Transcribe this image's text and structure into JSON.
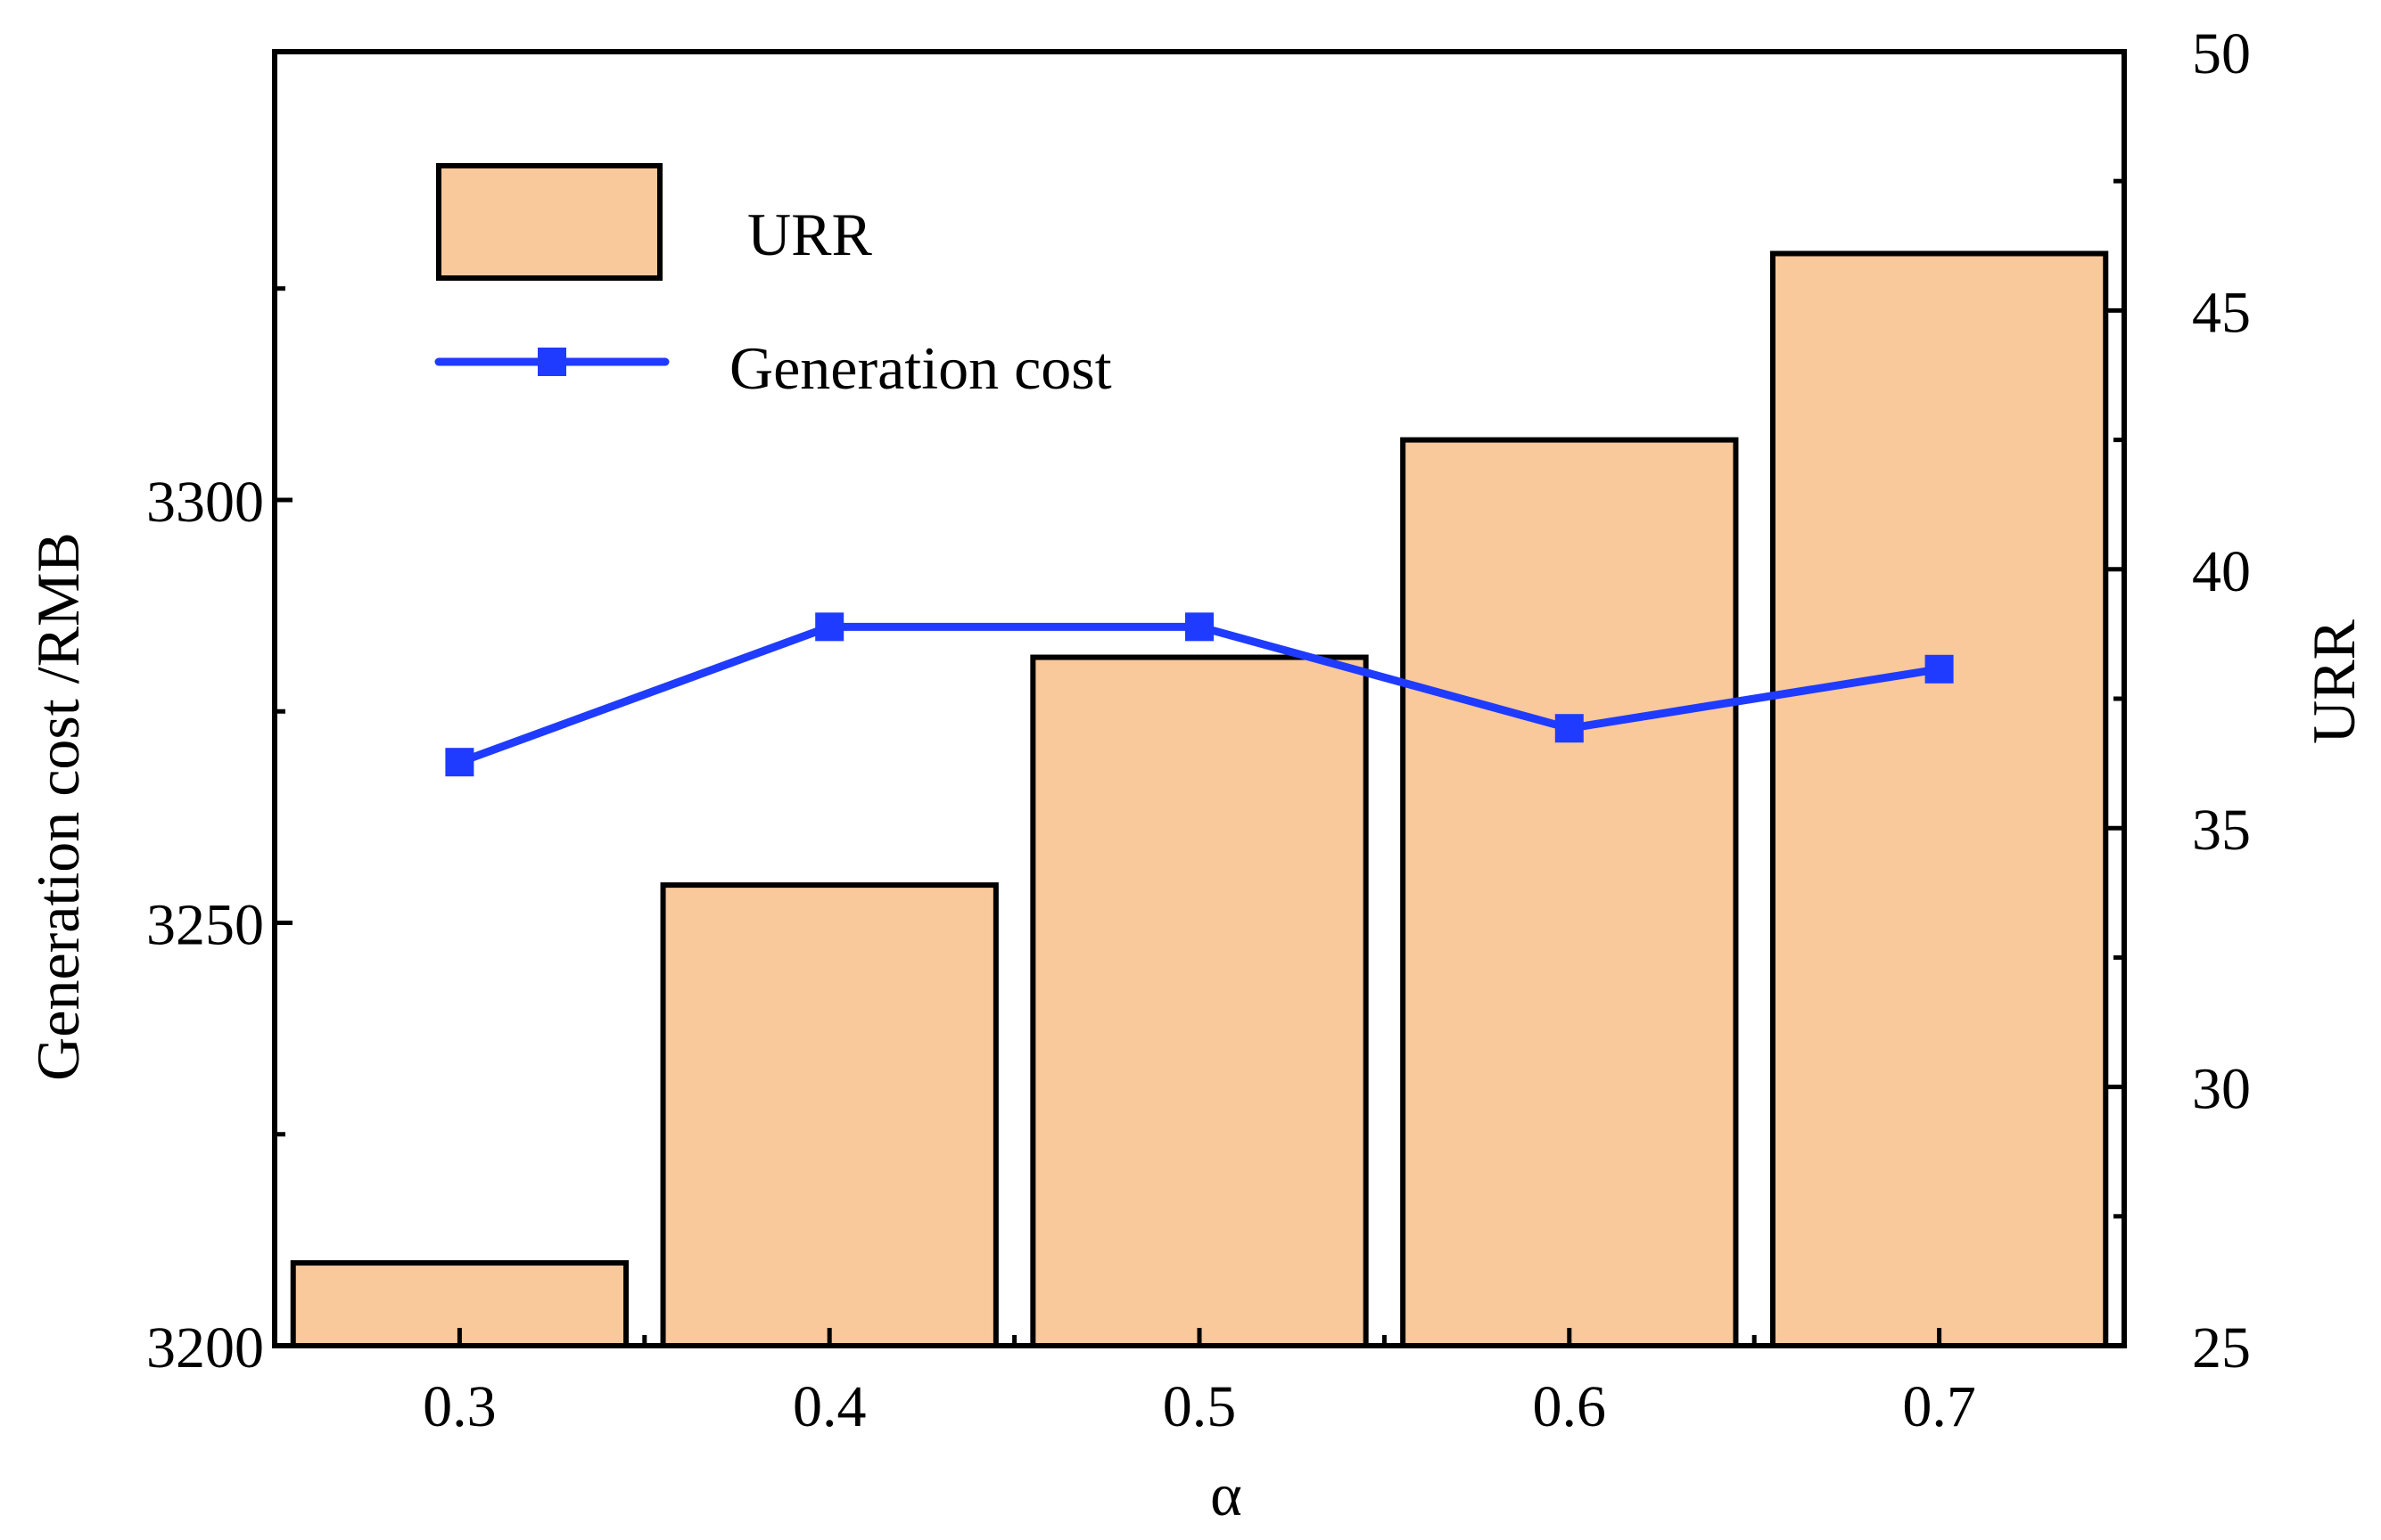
{
  "chart_data": {
    "type": "bar+line",
    "title": "",
    "xlabel": "α",
    "categories": [
      "0.3",
      "0.4",
      "0.5",
      "0.6",
      "0.7"
    ],
    "series": [
      {
        "name": "URR",
        "kind": "bar",
        "axis": "right",
        "values": [
          26.6,
          33.9,
          38.3,
          42.5,
          46.1
        ],
        "color": "#F9C89B"
      },
      {
        "name": "Generation cost",
        "kind": "line",
        "axis": "left",
        "values": [
          3269,
          3285,
          3285,
          3273,
          3280
        ],
        "color": "#1F3BFF"
      }
    ],
    "y_left": {
      "label": "Generation cost /RMB",
      "range": [
        3200,
        3353
      ],
      "ticks": [
        "3200",
        "3250",
        "3300"
      ]
    },
    "y_right": {
      "label": "URR",
      "range": [
        25,
        50
      ],
      "ticks": [
        "25",
        "30",
        "35",
        "40",
        "45",
        "50"
      ]
    },
    "x_range": [
      0.25,
      0.75
    ],
    "legend": {
      "position": "top-left",
      "entries": [
        "URR",
        "Generation cost"
      ]
    },
    "grid": false
  }
}
